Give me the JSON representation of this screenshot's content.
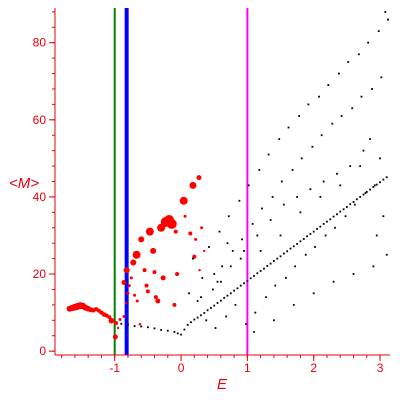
{
  "chart_data": {
    "type": "scatter",
    "xlabel": "E",
    "ylabel": "<M>",
    "xlim": [
      -1.9,
      3.15
    ],
    "ylim": [
      -1,
      89
    ],
    "xticks": [
      -1,
      0,
      1,
      2,
      3
    ],
    "yticks": [
      0,
      20,
      40,
      60,
      80
    ],
    "grid": false,
    "colors": {
      "axis": "#e8000b",
      "highlight": "#ff0000",
      "background": "#000000"
    },
    "vertical_lines": [
      {
        "x": -1.0,
        "color": "#007f00",
        "width": "thin"
      },
      {
        "x": -0.82,
        "color": "#0000ff",
        "width": "thick"
      },
      {
        "x": 1.0,
        "color": "#ff00ff",
        "width": "thin"
      }
    ],
    "series": [
      {
        "color": "#ff0000",
        "points": [
          [
            -1.68,
            11.0,
            3
          ],
          [
            -1.64,
            11.2,
            3.2
          ],
          [
            -1.6,
            11.4,
            3.4
          ],
          [
            -1.56,
            11.6,
            3.5
          ],
          [
            -1.52,
            11.8,
            3.5
          ],
          [
            -1.48,
            11.7,
            3.3
          ],
          [
            -1.44,
            11.3,
            3
          ],
          [
            -1.4,
            11.0,
            2.8
          ],
          [
            -1.36,
            10.7,
            2.5
          ],
          [
            -1.32,
            10.6,
            2.2
          ],
          [
            -1.28,
            10.9,
            2
          ],
          [
            -1.24,
            10.5,
            2
          ],
          [
            -1.2,
            10.0,
            2.2
          ],
          [
            -1.16,
            9.5,
            2.3
          ],
          [
            -1.12,
            9.2,
            2
          ],
          [
            -1.08,
            8.8,
            2
          ],
          [
            -1.05,
            7.9,
            2.8
          ],
          [
            -0.98,
            7.3,
            2
          ],
          [
            -0.92,
            8.2,
            1.5
          ],
          [
            -0.86,
            9.0,
            1.5
          ],
          [
            -0.99,
            3.7,
            2.5
          ],
          [
            -0.86,
            17.8,
            2.5
          ],
          [
            -0.82,
            21.0,
            3
          ],
          [
            -0.8,
            15.0,
            1.5
          ],
          [
            -0.78,
            17.0,
            1.5
          ],
          [
            -0.72,
            23.0,
            3
          ],
          [
            -0.7,
            14.5,
            1.5
          ],
          [
            -0.66,
            13.0,
            1.5
          ],
          [
            -0.67,
            25.0,
            4
          ],
          [
            -0.6,
            29.0,
            3
          ],
          [
            -0.55,
            21.0,
            2
          ],
          [
            -0.52,
            17.0,
            2
          ],
          [
            -0.5,
            15.5,
            2
          ],
          [
            -0.47,
            31.0,
            4
          ],
          [
            -0.42,
            26.0,
            3
          ],
          [
            -0.38,
            14.0,
            2
          ],
          [
            -0.35,
            13.0,
            2.5
          ],
          [
            -0.3,
            32.0,
            4
          ],
          [
            -0.27,
            19.0,
            2.5
          ],
          [
            -0.23,
            33.5,
            5
          ],
          [
            -0.18,
            34.0,
            5
          ],
          [
            -0.14,
            33.0,
            5
          ],
          [
            -0.08,
            31.0,
            2
          ],
          [
            -0.06,
            20.0,
            2
          ],
          [
            -0.1,
            12.0,
            2
          ],
          [
            0.04,
            39.0,
            4
          ],
          [
            0.14,
            30.5,
            2
          ],
          [
            0.18,
            43.0,
            3.5
          ],
          [
            0.22,
            29.0,
            1.5
          ],
          [
            0.27,
            45.0,
            2.5
          ],
          [
            0.2,
            24.5,
            2
          ],
          [
            0.06,
            35.0,
            1.5
          ],
          [
            -0.83,
            12.5,
            1.3
          ],
          [
            -0.62,
            7.0,
            1.3
          ],
          [
            -0.4,
            20.5,
            2
          ],
          [
            0.31,
            32.0,
            1.5
          ],
          [
            0.35,
            26.0,
            1.2
          ],
          [
            -0.75,
            19.0,
            1.5
          ],
          [
            0.28,
            21.0,
            1.2
          ],
          [
            -0.95,
            6.0,
            1.2
          ]
        ]
      },
      {
        "color": "#000000",
        "points": [
          [
            -0.9,
            7.1,
            1
          ],
          [
            -0.8,
            6.9,
            1
          ],
          [
            -0.7,
            6.5,
            1
          ],
          [
            -0.6,
            6.4,
            1
          ],
          [
            -0.5,
            6.2,
            1
          ],
          [
            -0.4,
            5.9,
            1
          ],
          [
            -0.3,
            5.5,
            1
          ],
          [
            -0.2,
            5.3,
            1
          ],
          [
            -0.1,
            5.0,
            1
          ],
          [
            -0.05,
            4.6,
            1
          ],
          [
            0.0,
            4.3,
            1
          ],
          [
            0.05,
            5.6,
            1
          ],
          [
            0.1,
            6.8,
            1
          ],
          [
            0.15,
            7.5,
            1
          ],
          [
            0.2,
            8.2,
            1
          ],
          [
            0.25,
            8.7,
            1
          ],
          [
            0.3,
            9.3,
            1
          ],
          [
            0.35,
            9.9,
            1
          ],
          [
            0.4,
            10.6,
            1
          ],
          [
            0.45,
            11.2,
            1
          ],
          [
            0.5,
            11.8,
            1
          ],
          [
            0.55,
            12.5,
            1
          ],
          [
            0.6,
            13.1,
            1
          ],
          [
            0.65,
            13.8,
            1
          ],
          [
            0.7,
            14.4,
            1
          ],
          [
            0.75,
            15.0,
            1
          ],
          [
            0.8,
            15.7,
            1
          ],
          [
            0.85,
            16.3,
            1
          ],
          [
            0.9,
            17.0,
            1
          ],
          [
            0.95,
            17.6,
            1
          ],
          [
            1.0,
            18.2,
            1
          ],
          [
            1.05,
            18.9,
            1
          ],
          [
            1.1,
            19.5,
            1
          ],
          [
            1.15,
            20.2,
            1
          ],
          [
            1.2,
            20.8,
            1
          ],
          [
            1.25,
            21.4,
            1
          ],
          [
            1.3,
            22.1,
            1
          ],
          [
            1.35,
            22.7,
            1
          ],
          [
            1.4,
            23.4,
            1
          ],
          [
            1.45,
            24.0,
            1
          ],
          [
            1.5,
            24.6,
            1
          ],
          [
            1.55,
            25.3,
            1
          ],
          [
            1.6,
            25.9,
            1
          ],
          [
            1.65,
            26.6,
            1
          ],
          [
            1.7,
            27.2,
            1
          ],
          [
            1.75,
            27.8,
            1
          ],
          [
            1.8,
            28.5,
            1
          ],
          [
            1.85,
            29.1,
            1
          ],
          [
            1.9,
            29.8,
            1
          ],
          [
            1.95,
            30.4,
            1
          ],
          [
            2.0,
            31.0,
            1
          ],
          [
            2.05,
            31.7,
            1
          ],
          [
            2.1,
            32.3,
            1
          ],
          [
            2.15,
            33.0,
            1
          ],
          [
            2.2,
            33.6,
            1
          ],
          [
            2.25,
            34.2,
            1
          ],
          [
            2.3,
            34.9,
            1
          ],
          [
            2.35,
            35.5,
            1
          ],
          [
            2.4,
            36.2,
            1
          ],
          [
            2.45,
            36.8,
            1
          ],
          [
            2.5,
            37.4,
            1
          ],
          [
            2.55,
            38.1,
            1
          ],
          [
            2.6,
            38.7,
            1
          ],
          [
            2.65,
            39.4,
            1
          ],
          [
            2.7,
            40.0,
            1
          ],
          [
            2.75,
            40.6,
            1
          ],
          [
            2.8,
            41.3,
            1
          ],
          [
            2.85,
            41.9,
            1
          ],
          [
            2.9,
            42.6,
            1
          ],
          [
            2.95,
            43.2,
            1
          ],
          [
            3.0,
            43.8,
            1
          ],
          [
            3.05,
            44.5,
            1
          ],
          [
            3.1,
            45.1,
            1
          ],
          [
            0.12,
            15.0,
            1
          ],
          [
            0.18,
            24.0,
            1
          ],
          [
            0.25,
            13.0,
            1
          ],
          [
            0.32,
            19.0,
            1
          ],
          [
            0.38,
            8.0,
            1
          ],
          [
            0.42,
            27.0,
            1
          ],
          [
            0.48,
            16.0,
            1
          ],
          [
            0.52,
            6.0,
            1
          ],
          [
            0.58,
            31.0,
            1
          ],
          [
            0.62,
            22.0,
            1
          ],
          [
            0.68,
            9.0,
            1
          ],
          [
            0.72,
            35.0,
            1
          ],
          [
            0.78,
            26.0,
            1
          ],
          [
            0.82,
            12.0,
            1
          ],
          [
            0.88,
            39.0,
            1
          ],
          [
            0.92,
            29.0,
            1
          ],
          [
            0.98,
            7.0,
            1
          ],
          [
            1.02,
            43.0,
            1
          ],
          [
            1.08,
            33.0,
            1
          ],
          [
            1.12,
            10.0,
            1
          ],
          [
            1.18,
            47.0,
            1
          ],
          [
            1.22,
            37.0,
            1
          ],
          [
            1.28,
            14.0,
            1
          ],
          [
            1.32,
            51.0,
            1
          ],
          [
            1.38,
            40.0,
            1
          ],
          [
            1.42,
            17.0,
            1
          ],
          [
            1.48,
            55.0,
            1
          ],
          [
            1.52,
            44.0,
            1
          ],
          [
            1.58,
            19.0,
            1
          ],
          [
            1.62,
            58.0,
            1
          ],
          [
            1.68,
            47.0,
            1
          ],
          [
            1.72,
            22.0,
            1
          ],
          [
            1.78,
            61.0,
            1
          ],
          [
            1.82,
            50.0,
            1
          ],
          [
            1.88,
            25.0,
            1
          ],
          [
            1.92,
            64.0,
            1
          ],
          [
            1.98,
            53.0,
            1
          ],
          [
            2.02,
            27.0,
            1
          ],
          [
            2.08,
            66.0,
            1
          ],
          [
            2.12,
            56.0,
            1
          ],
          [
            2.18,
            30.0,
            1
          ],
          [
            2.22,
            69.0,
            1
          ],
          [
            2.28,
            59.0,
            1
          ],
          [
            2.32,
            32.0,
            1
          ],
          [
            2.38,
            72.0,
            1
          ],
          [
            2.42,
            61.0,
            1
          ],
          [
            2.48,
            35.0,
            1
          ],
          [
            2.52,
            75.0,
            1
          ],
          [
            2.58,
            63.0,
            1
          ],
          [
            2.62,
            38.0,
            1
          ],
          [
            2.68,
            77.0,
            1
          ],
          [
            2.72,
            66.0,
            1
          ],
          [
            2.78,
            41.0,
            1
          ],
          [
            2.82,
            80.0,
            1
          ],
          [
            2.88,
            68.0,
            1
          ],
          [
            2.92,
            43.0,
            1
          ],
          [
            2.98,
            83.0,
            1
          ],
          [
            3.02,
            71.0,
            1
          ],
          [
            3.08,
            88.0,
            1
          ],
          [
            3.12,
            86.0,
            1
          ],
          [
            0.6,
            18.0,
            1
          ],
          [
            0.9,
            24.0,
            1
          ],
          [
            1.2,
            26.0,
            1
          ],
          [
            1.5,
            30.0,
            1
          ],
          [
            1.8,
            36.0,
            1
          ],
          [
            2.1,
            40.0,
            1
          ],
          [
            2.4,
            43.0,
            1
          ],
          [
            2.7,
            48.0,
            1
          ],
          [
            3.0,
            50.0,
            1
          ],
          [
            1.1,
            5.0,
            1
          ],
          [
            1.4,
            8.0,
            1
          ],
          [
            1.7,
            12.0,
            1
          ],
          [
            2.0,
            15.0,
            1
          ],
          [
            2.3,
            18.0,
            1
          ],
          [
            2.6,
            20.0,
            1
          ],
          [
            2.9,
            22.0,
            1
          ],
          [
            3.1,
            25.0,
            1
          ],
          [
            0.7,
            28.0,
            1
          ],
          [
            0.5,
            20.0,
            1
          ],
          [
            0.3,
            14.0,
            1
          ],
          [
            2.95,
            30.0,
            1
          ],
          [
            3.05,
            35.0,
            1
          ],
          [
            2.85,
            55.0,
            1
          ],
          [
            2.75,
            52.0,
            1
          ],
          [
            2.55,
            48.0,
            1
          ],
          [
            2.35,
            46.0,
            1
          ],
          [
            2.15,
            44.0,
            1
          ],
          [
            1.95,
            42.0,
            1
          ],
          [
            1.75,
            40.0,
            1
          ],
          [
            1.55,
            38.0,
            1
          ],
          [
            1.35,
            34.0,
            1
          ],
          [
            1.15,
            30.0,
            1
          ],
          [
            0.95,
            26.0,
            1
          ],
          [
            0.75,
            22.0,
            1
          ],
          [
            0.55,
            18.0,
            1
          ]
        ]
      }
    ]
  }
}
